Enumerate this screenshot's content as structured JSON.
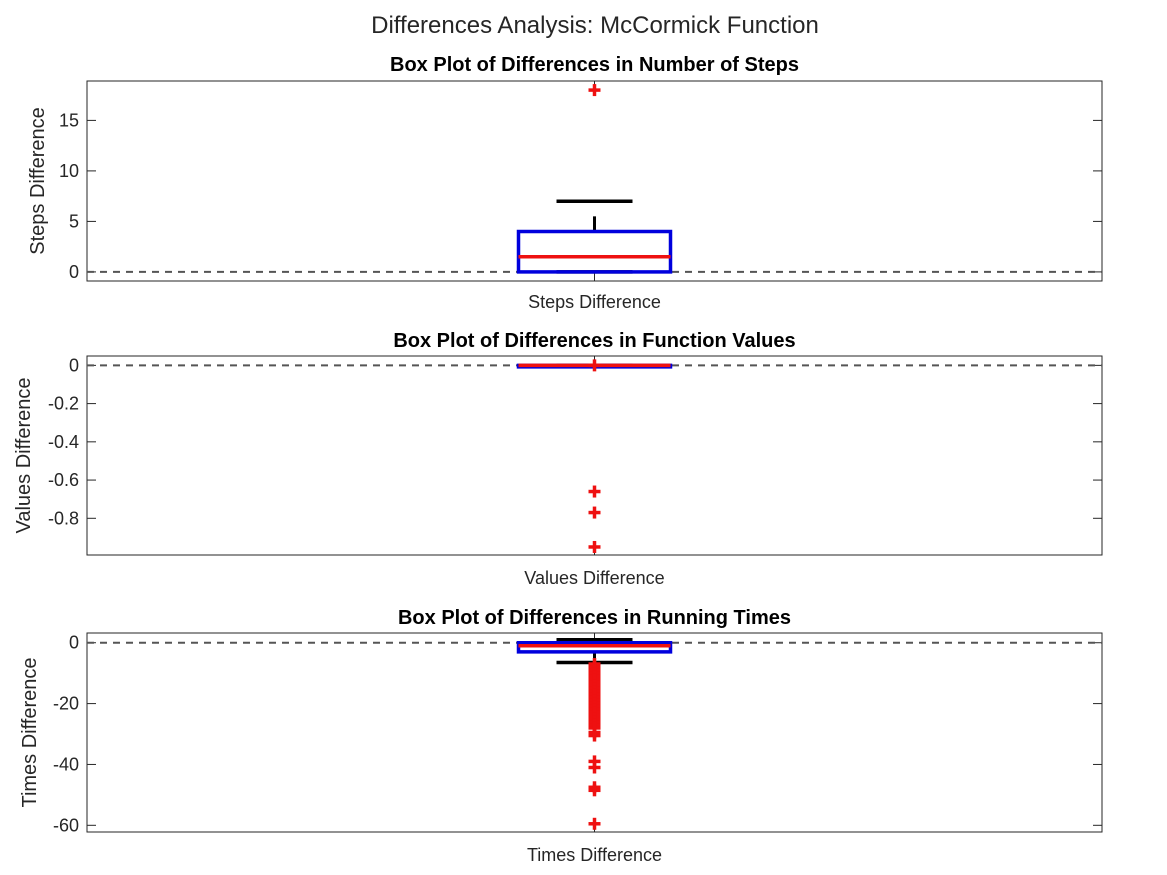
{
  "figure": {
    "suptitle": "Differences Analysis: McCormick Function"
  },
  "chart_data": [
    {
      "type": "box",
      "title": "Box Plot of Differences in Number of Steps",
      "xlabel": "",
      "ylabel": "Steps Difference",
      "categories": [
        "Steps Difference"
      ],
      "ylim": [
        -0.9,
        18.9
      ],
      "yticks": [
        0,
        5,
        10,
        15
      ],
      "ytick_labels": [
        "0",
        "5",
        "10",
        "15"
      ],
      "reference_line": 0,
      "box": {
        "q1": 0,
        "median": 1.5,
        "q3": 4,
        "whisker_low": 0,
        "whisker_high": 7,
        "whisker_stem_top": 5.5
      },
      "outliers": [
        18
      ],
      "colors": {
        "box": "#0000dd",
        "median": "#ee1111",
        "whisker": "#000000",
        "outlier": "#ee1111",
        "reference": "#555555"
      }
    },
    {
      "type": "box",
      "title": "Box Plot of Differences in Function Values",
      "xlabel": "",
      "ylabel": "Values Difference",
      "categories": [
        "Values Difference"
      ],
      "ylim": [
        -0.992,
        0.049
      ],
      "yticks": [
        0,
        -0.2,
        -0.4,
        -0.6,
        -0.8
      ],
      "ytick_labels": [
        "0",
        "-0.2",
        "-0.4",
        "-0.6",
        "-0.8"
      ],
      "reference_line": 0,
      "box": {
        "q1": 0,
        "median": 0,
        "q3": 0,
        "whisker_low": 0,
        "whisker_high": 0
      },
      "outliers": [
        0,
        -0.66,
        -0.77,
        -0.95
      ],
      "colors": {
        "box": "#0000dd",
        "median": "#ee1111",
        "whisker": "#000000",
        "outlier": "#ee1111",
        "reference": "#555555"
      }
    },
    {
      "type": "box",
      "title": "Box Plot of Differences in Running Times",
      "xlabel": "",
      "ylabel": "Times Difference",
      "categories": [
        "Times Difference"
      ],
      "ylim": [
        -62.2,
        3.2
      ],
      "yticks": [
        0,
        -20,
        -40,
        -60
      ],
      "ytick_labels": [
        "0",
        "-20",
        "-40",
        "-60"
      ],
      "reference_line": 0,
      "box": {
        "q1": -3,
        "median": -1,
        "q3": 0,
        "whisker_low": -6.5,
        "whisker_high": 1
      },
      "outliers": [
        -7,
        -8,
        -9,
        -10,
        -11,
        -12,
        -13,
        -14,
        -15,
        -16,
        -17,
        -18,
        -19,
        -20,
        -21,
        -22,
        -23,
        -24,
        -25,
        -26,
        -27,
        -28,
        -29.5,
        -30.5,
        -39,
        -41,
        -47.5,
        -48.5,
        -59.5
      ],
      "colors": {
        "box": "#0000dd",
        "median": "#ee1111",
        "whisker": "#000000",
        "outlier": "#ee1111",
        "reference": "#555555"
      }
    }
  ]
}
